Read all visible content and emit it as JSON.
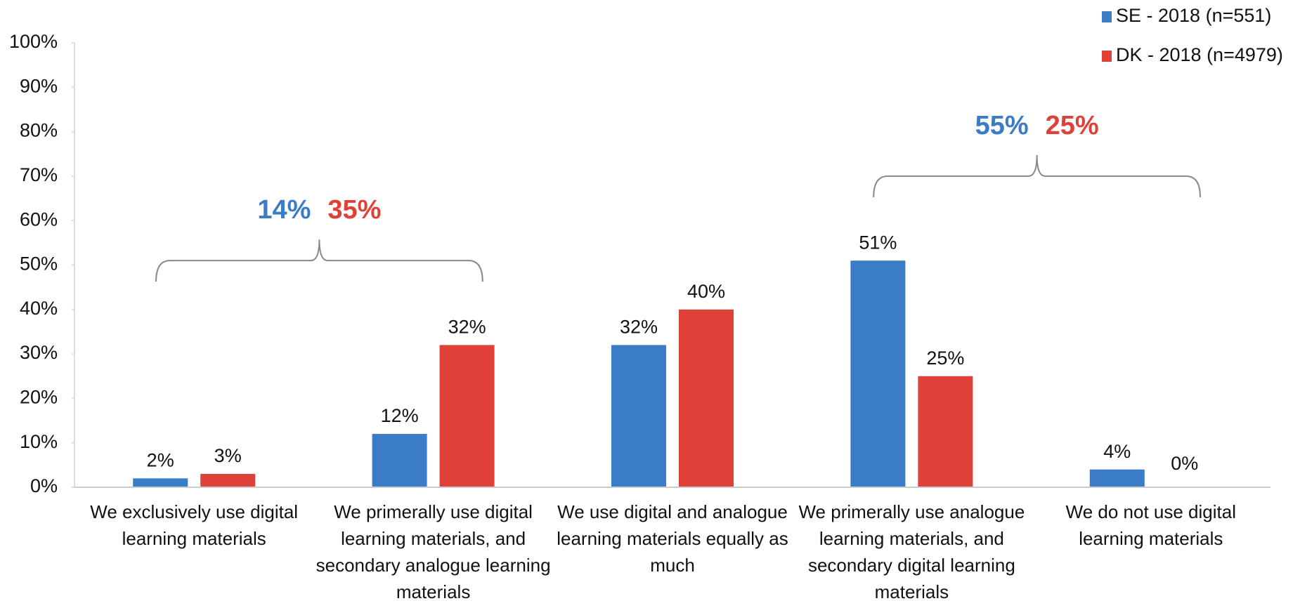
{
  "chart_data": {
    "type": "bar",
    "categories": [
      "We exclusively use digital learning materials",
      "We primerally use digital learning materials, and secondary analogue learning materials",
      "We use digital and analogue learning materials equally as much",
      "We primerally use analogue learning materials, and secondary digital learning materials",
      "We do not use digital learning materials"
    ],
    "series": [
      {
        "name": "SE - 2018 (n=551)",
        "color": "#3b7cc6",
        "values": [
          2,
          12,
          32,
          51,
          4
        ],
        "value_labels": [
          "2%",
          "12%",
          "32%",
          "51%",
          "4%"
        ]
      },
      {
        "name": "DK - 2018 (n=4979)",
        "color": "#df4138",
        "values": [
          3,
          32,
          40,
          25,
          0
        ],
        "value_labels": [
          "3%",
          "32%",
          "40%",
          "25%",
          "0%"
        ]
      }
    ],
    "ylim": [
      0,
      100
    ],
    "yticks": [
      {
        "value": 0,
        "label": "0%"
      },
      {
        "value": 10,
        "label": "10%"
      },
      {
        "value": 20,
        "label": "20%"
      },
      {
        "value": 30,
        "label": "30%"
      },
      {
        "value": 40,
        "label": "40%"
      },
      {
        "value": 50,
        "label": "50%"
      },
      {
        "value": 60,
        "label": "60%"
      },
      {
        "value": 70,
        "label": "70%"
      },
      {
        "value": 80,
        "label": "80%"
      },
      {
        "value": 90,
        "label": "90%"
      },
      {
        "value": 100,
        "label": "100%"
      }
    ],
    "legend": "top-right",
    "annotations": [
      {
        "labels": [
          {
            "text": "14%",
            "color": "#3b7cc6"
          },
          {
            "text": "35%",
            "color": "#df4138"
          }
        ]
      },
      {
        "labels": [
          {
            "text": "55%",
            "color": "#3b7cc6"
          },
          {
            "text": "25%",
            "color": "#df4138"
          }
        ]
      }
    ]
  }
}
